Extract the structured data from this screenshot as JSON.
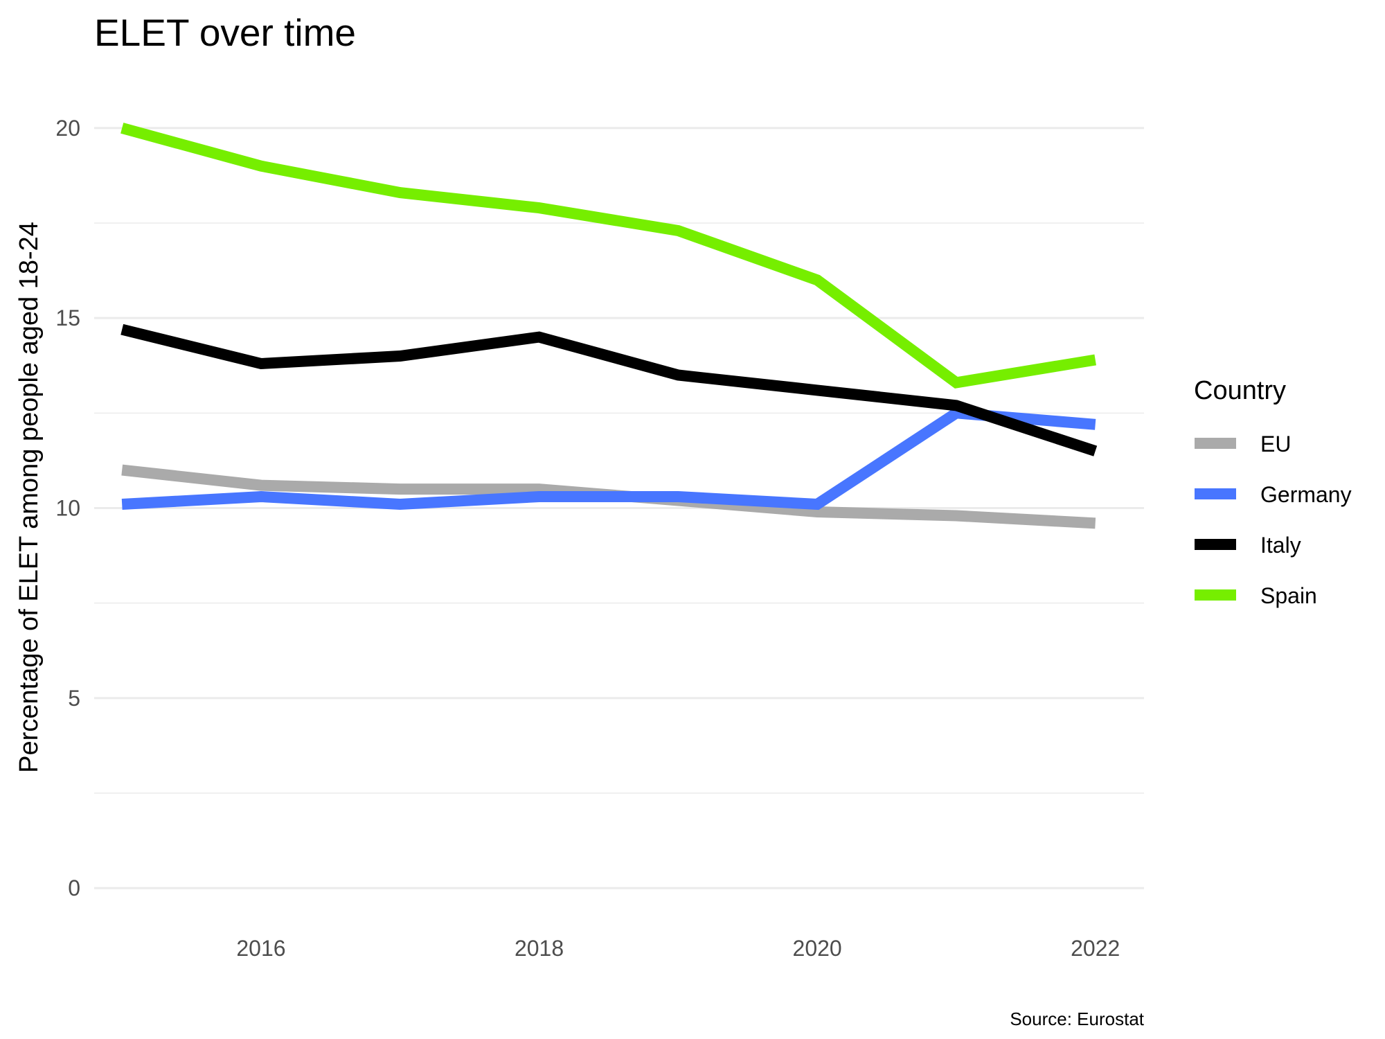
{
  "chart_data": {
    "type": "line",
    "title": "ELET over time",
    "xlabel": "",
    "ylabel": "Percentage of ELET among people aged 18-24",
    "caption": "Source: Eurostat",
    "x": [
      2015,
      2016,
      2017,
      2018,
      2019,
      2020,
      2021,
      2022
    ],
    "xlim": [
      2014.8,
      2022.35
    ],
    "ylim": [
      -1,
      21
    ],
    "x_ticks": [
      2016,
      2018,
      2020,
      2022
    ],
    "x_tick_labels": [
      "2016",
      "2018",
      "2020",
      "2022"
    ],
    "y_ticks": [
      0,
      5,
      10,
      15,
      20
    ],
    "y_tick_labels": [
      "0",
      "5",
      "10",
      "15",
      "20"
    ],
    "y_minor_ticks": [
      2.5,
      7.5,
      12.5,
      17.5
    ],
    "grid": true,
    "legend": {
      "title": "Country",
      "position": "right"
    },
    "series": [
      {
        "name": "EU",
        "color": "#aaaaaa",
        "values": [
          11.0,
          10.6,
          10.5,
          10.5,
          10.2,
          9.9,
          9.8,
          9.6
        ]
      },
      {
        "name": "Germany",
        "color": "#4876ff",
        "values": [
          10.1,
          10.3,
          10.1,
          10.3,
          10.3,
          10.1,
          12.5,
          12.2
        ]
      },
      {
        "name": "Italy",
        "color": "#000000",
        "values": [
          14.7,
          13.8,
          14.0,
          14.5,
          13.5,
          13.1,
          12.7,
          11.5
        ]
      },
      {
        "name": "Spain",
        "color": "#76ee00",
        "values": [
          20.0,
          19.0,
          18.3,
          17.9,
          17.3,
          16.0,
          13.3,
          13.9
        ]
      }
    ]
  }
}
